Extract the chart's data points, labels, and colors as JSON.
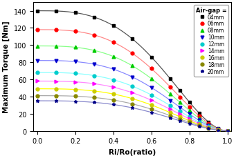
{
  "title": "",
  "xlabel": "Ri/Ro(ratio)",
  "ylabel": "Maximum Torque [Nm]",
  "xlim": [
    -0.02,
    1.02
  ],
  "ylim": [
    0,
    150
  ],
  "yticks": [
    0,
    20,
    40,
    60,
    80,
    100,
    120,
    140
  ],
  "xticks": [
    0.0,
    0.2,
    0.4,
    0.6,
    0.8,
    1.0
  ],
  "legend_title": "Air-gap =",
  "series": [
    {
      "label": "04mm",
      "color": "#000000",
      "line_color": "#555555",
      "marker": "s",
      "T0": 140,
      "power": 3.5
    },
    {
      "label": "06mm",
      "color": "#ff0000",
      "line_color": "#ff8888",
      "marker": "o",
      "T0": 118,
      "power": 3.5
    },
    {
      "label": "08mm",
      "color": "#00cc00",
      "line_color": "#88ff88",
      "marker": "^",
      "T0": 99,
      "power": 3.5
    },
    {
      "label": "10mm",
      "color": "#0000cc",
      "line_color": "#8888ff",
      "marker": "v",
      "T0": 82,
      "power": 3.5
    },
    {
      "label": "12mm",
      "color": "#00cccc",
      "line_color": "#88ffff",
      "marker": "o",
      "T0": 68,
      "power": 3.5
    },
    {
      "label": "14mm",
      "color": "#ff00ff",
      "line_color": "#ff88ff",
      "marker": ">",
      "T0": 58,
      "power": 3.5
    },
    {
      "label": "16mm",
      "color": "#cccc00",
      "line_color": "#ffff00",
      "marker": "o",
      "T0": 49,
      "power": 3.5
    },
    {
      "label": "18mm",
      "color": "#888800",
      "line_color": "#aaaaaa",
      "marker": "o",
      "T0": 41,
      "power": 3.5
    },
    {
      "label": "20mm",
      "color": "#000088",
      "line_color": "#8888cc",
      "marker": "*",
      "T0": 35,
      "power": 3.5
    }
  ],
  "background_color": "#ffffff",
  "figsize": [
    3.41,
    2.3
  ],
  "dpi": 100
}
